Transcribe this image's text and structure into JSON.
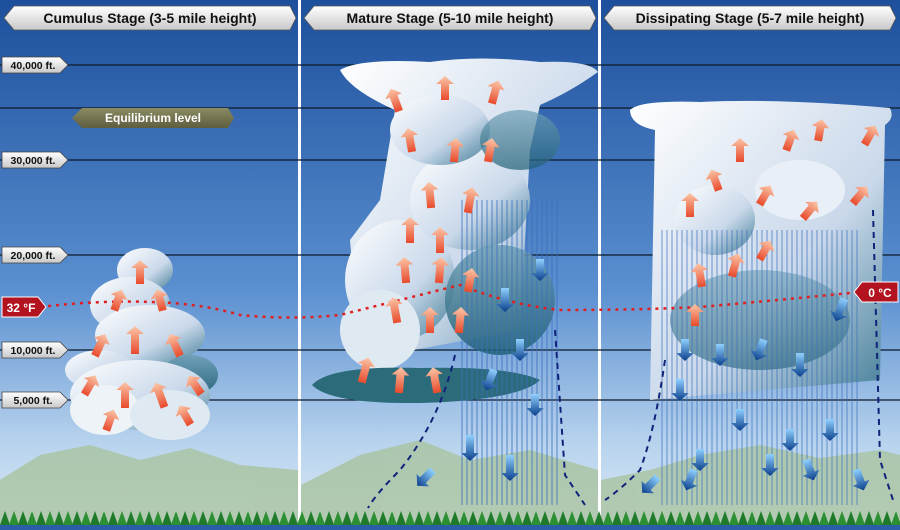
{
  "panels": [
    {
      "title": "Cumulus Stage (3-5 mile height)"
    },
    {
      "title": "Mature Stage (5-10 mile height)"
    },
    {
      "title": "Dissipating Stage (5-7 mile height)"
    }
  ],
  "altitudes": [
    "40,000 ft.",
    "30,000 ft.",
    "20,000 ft.",
    "10,000 ft.",
    "5,000 ft."
  ],
  "equilibrium_label": "Equilibrium level",
  "freezing": {
    "fahrenheit": "32 °F",
    "celsius": "0 °C"
  },
  "colors": {
    "sky_top": "#1d4f9c",
    "sky_bottom": "#cfe2f2",
    "updraft": "#f08a6a",
    "downdraft": "#2f7fd0",
    "freezing_line": "#e02020",
    "label_red": "#b3121f",
    "trees": "#1f7a2a"
  }
}
